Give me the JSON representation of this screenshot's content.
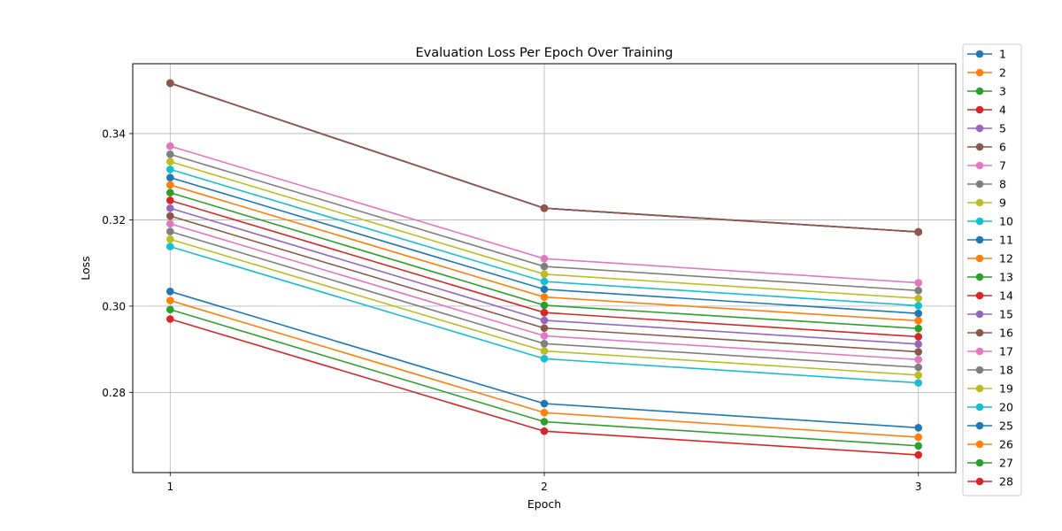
{
  "chart_data": {
    "type": "line",
    "title": "Evaluation Loss Per Epoch Over Training",
    "xlabel": "Epoch",
    "ylabel": "Loss",
    "x": [
      1,
      2,
      3
    ],
    "x_ticks": [
      "1",
      "2",
      "3"
    ],
    "y_ticks": [
      "0.28",
      "0.30",
      "0.32",
      "0.34"
    ],
    "y_tick_values": [
      0.28,
      0.3,
      0.32,
      0.34
    ],
    "xlim": [
      0.9,
      3.1
    ],
    "ylim": [
      0.2614,
      0.3562
    ],
    "grid": true,
    "legend_position": "outside right",
    "series": [
      {
        "name": "1",
        "color": "#1f77b4",
        "values": [
          0.3517,
          0.3227,
          0.3172
        ]
      },
      {
        "name": "2",
        "color": "#ff7f0e",
        "values": [
          0.3517,
          0.3227,
          0.3172
        ]
      },
      {
        "name": "3",
        "color": "#2ca02c",
        "values": [
          0.3517,
          0.3227,
          0.3172
        ]
      },
      {
        "name": "4",
        "color": "#d62728",
        "values": [
          0.3517,
          0.3227,
          0.3172
        ]
      },
      {
        "name": "5",
        "color": "#9467bd",
        "values": [
          0.3517,
          0.3227,
          0.3172
        ]
      },
      {
        "name": "6",
        "color": "#8c564b",
        "values": [
          0.3517,
          0.3227,
          0.3172
        ]
      },
      {
        "name": "7",
        "color": "#e377c2",
        "values": [
          0.3371,
          0.311,
          0.3054
        ]
      },
      {
        "name": "8",
        "color": "#7f7f7f",
        "values": [
          0.3352,
          0.3092,
          0.3036
        ]
      },
      {
        "name": "9",
        "color": "#bcbd22",
        "values": [
          0.3335,
          0.3074,
          0.3018
        ]
      },
      {
        "name": "10",
        "color": "#17becf",
        "values": [
          0.3317,
          0.3057,
          0.3001
        ]
      },
      {
        "name": "11",
        "color": "#1f77b4",
        "values": [
          0.3298,
          0.3039,
          0.2983
        ]
      },
      {
        "name": "12",
        "color": "#ff7f0e",
        "values": [
          0.3281,
          0.3021,
          0.2966
        ]
      },
      {
        "name": "13",
        "color": "#2ca02c",
        "values": [
          0.3263,
          0.3002,
          0.2948
        ]
      },
      {
        "name": "14",
        "color": "#d62728",
        "values": [
          0.3245,
          0.2985,
          0.2929
        ]
      },
      {
        "name": "15",
        "color": "#9467bd",
        "values": [
          0.3227,
          0.2967,
          0.2912
        ]
      },
      {
        "name": "16",
        "color": "#8c564b",
        "values": [
          0.3209,
          0.2949,
          0.2894
        ]
      },
      {
        "name": "17",
        "color": "#e377c2",
        "values": [
          0.3191,
          0.2931,
          0.2876
        ]
      },
      {
        "name": "18",
        "color": "#7f7f7f",
        "values": [
          0.3173,
          0.2913,
          0.2858
        ]
      },
      {
        "name": "19",
        "color": "#bcbd22",
        "values": [
          0.3155,
          0.2896,
          0.284
        ]
      },
      {
        "name": "20",
        "color": "#17becf",
        "values": [
          0.3138,
          0.2878,
          0.2822
        ]
      },
      {
        "name": "25",
        "color": "#1f77b4",
        "values": [
          0.3034,
          0.2774,
          0.2718
        ]
      },
      {
        "name": "26",
        "color": "#ff7f0e",
        "values": [
          0.3013,
          0.2753,
          0.2696
        ]
      },
      {
        "name": "27",
        "color": "#2ca02c",
        "values": [
          0.2992,
          0.2732,
          0.2676
        ]
      },
      {
        "name": "28",
        "color": "#d62728",
        "values": [
          0.297,
          0.271,
          0.2655
        ]
      }
    ]
  }
}
